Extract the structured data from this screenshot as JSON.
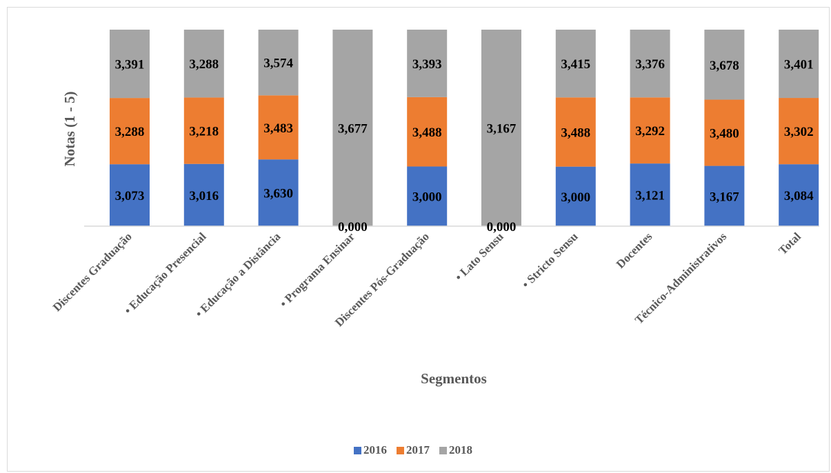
{
  "chart_data": {
    "type": "bar",
    "stacked": true,
    "title": "",
    "xlabel": "Segmentos",
    "ylabel": "Notas (1 - 5)",
    "categories": [
      "Discentes Graduação",
      "• Educação Presencial",
      "• Educação a Distância",
      "• Programa Ensinar",
      "Discentes Pós-Graduação",
      "• Lato Sensu",
      "• Stricto Sensu",
      "Docentes",
      "Técnico-Administrativos",
      "Total"
    ],
    "series": [
      {
        "name": "2016",
        "color": "#4472c4",
        "values": [
          3.073,
          3.016,
          3.63,
          0.0,
          3.0,
          0.0,
          3.0,
          3.121,
          3.167,
          3.084
        ],
        "labels": [
          "3,073",
          "3,016",
          "3,630",
          "0,000",
          "3,000",
          "0,000",
          "3,000",
          "3,121",
          "3,167",
          "3,084"
        ]
      },
      {
        "name": "2017",
        "color": "#ed7d31",
        "values": [
          3.288,
          3.218,
          3.483,
          0,
          3.488,
          0,
          3.488,
          3.292,
          3.48,
          3.302
        ],
        "labels": [
          "3,288",
          "3,218",
          "3,483",
          "",
          "3,488",
          "",
          "3,488",
          "3,292",
          "3,480",
          "3,302"
        ]
      },
      {
        "name": "2018",
        "color": "#a5a5a5",
        "values": [
          3.391,
          3.288,
          3.574,
          3.677,
          3.393,
          3.167,
          3.415,
          3.376,
          3.678,
          3.401
        ],
        "labels": [
          "3,391",
          "3,288",
          "3,574",
          "3,677",
          "3,393",
          "3,167",
          "3,415",
          "3,376",
          "3,678",
          "3,401"
        ]
      }
    ],
    "stacked_normalized": true,
    "grid": false,
    "legend_position": "bottom"
  }
}
